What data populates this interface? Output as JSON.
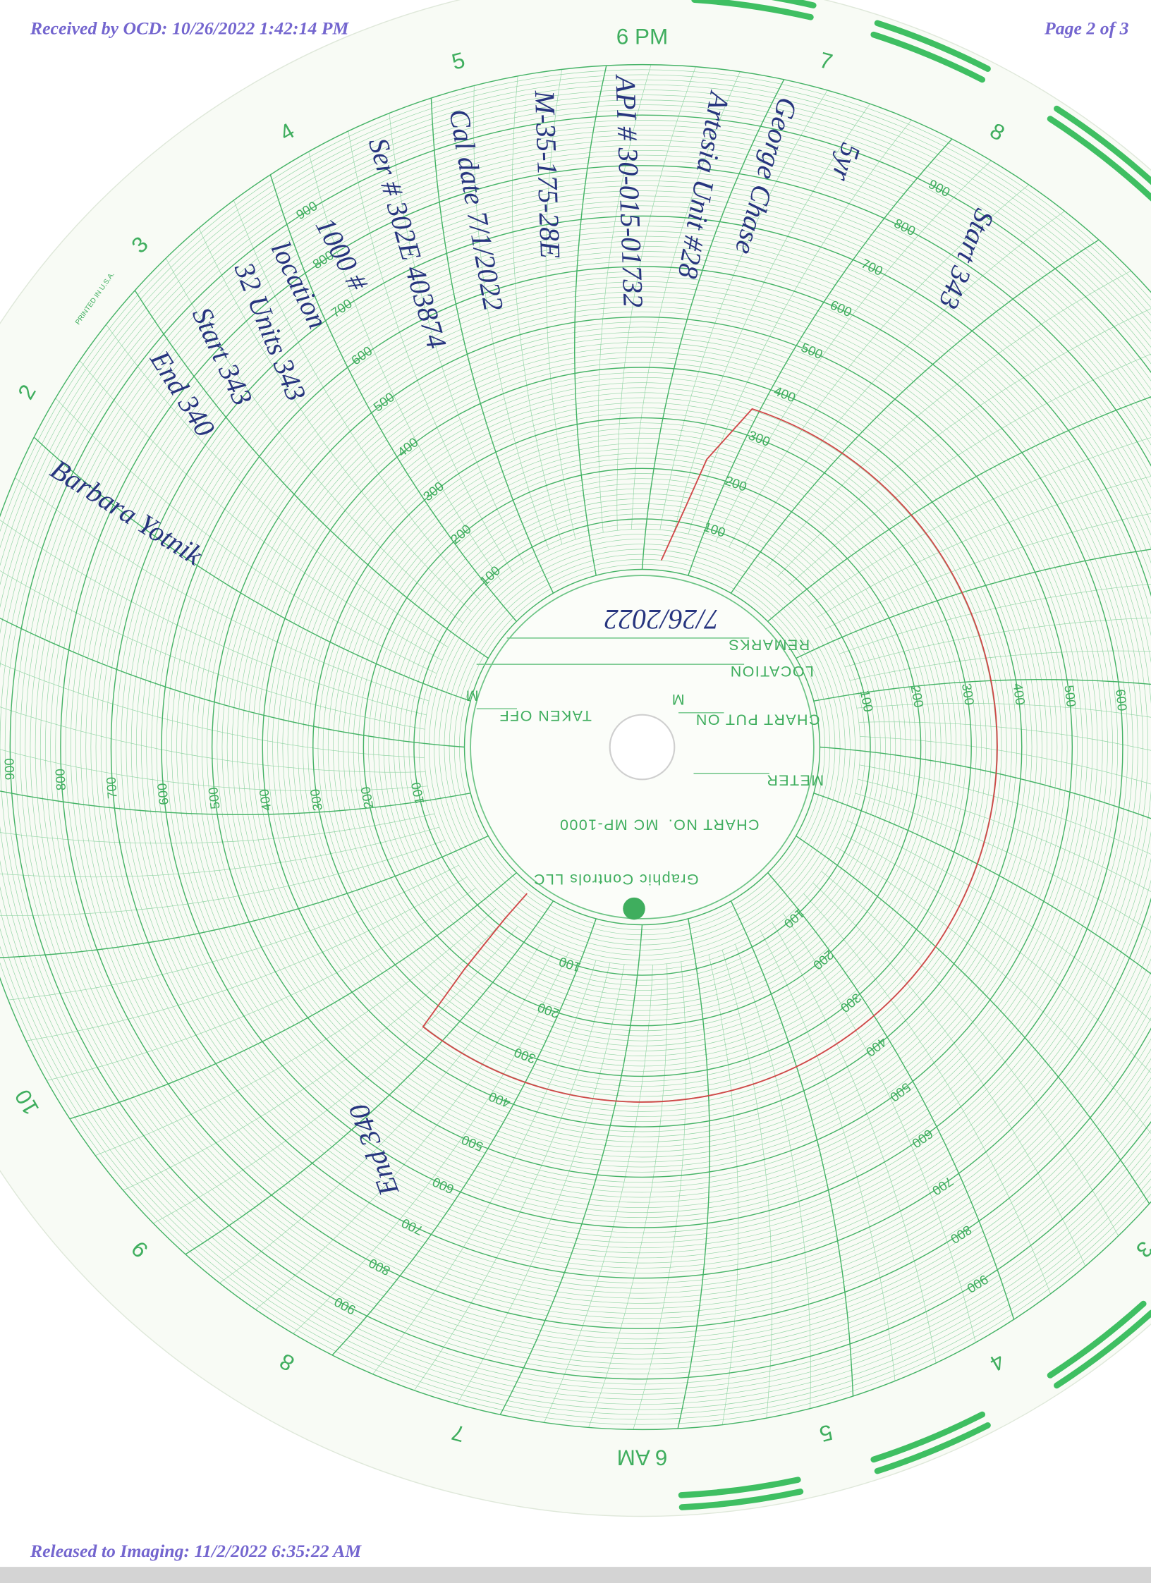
{
  "header": {
    "received": "Received by OCD: 10/26/2022 1:42:14 PM",
    "page": "Page 2 of 3"
  },
  "footer": {
    "released": "Released to Imaging: 11/2/2022 6:35:22 AM"
  },
  "chart_face": {
    "hour_labels": [
      "6 PM",
      "7",
      "8",
      "3",
      "4",
      "5",
      "6 AM",
      "7",
      "8",
      "9",
      "10",
      "2",
      "3",
      "4",
      "5"
    ],
    "scale_labels": [
      "100",
      "200",
      "300",
      "400",
      "500",
      "600",
      "700",
      "800",
      "900"
    ],
    "printed_in": "PRINTED IN U.S.A.",
    "chart_no_label": "CHART NO.",
    "chart_no": "MC MP-1000",
    "meter": "METER",
    "chart_put_on": "CHART PUT ON",
    "taken_off": "TAKEN OFF",
    "m": "M",
    "location": "LOCATION",
    "remarks": "REMARKS",
    "maker": "Graphic Controls LLC"
  },
  "handwriting": {
    "date": "7/26/2022",
    "notes": [
      "Start 343",
      "5yr",
      "George Chase",
      "Artesia Unit #28",
      "API # 30-015-01732",
      "M-35-175-28E",
      "Cal date 7/1/2022",
      "Ser # 302E 403874",
      "1000 #",
      "location",
      "32 Units 343",
      "Start 343",
      "End 340"
    ],
    "signature": "Barbara Yotnik",
    "end_note": "End 340"
  }
}
